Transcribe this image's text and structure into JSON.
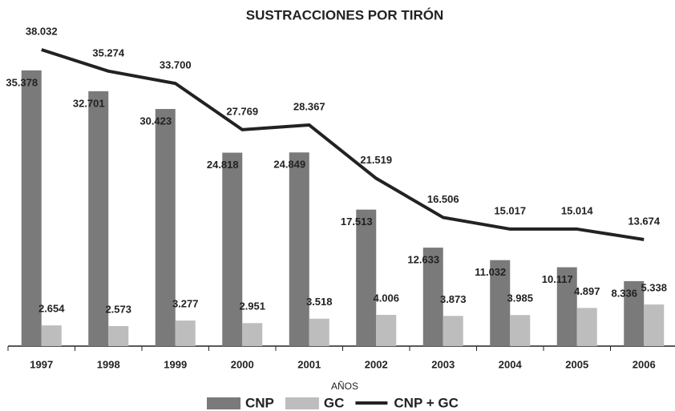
{
  "chart_data": {
    "type": "bar",
    "title": "SUSTRACCIONES POR TIRÓN",
    "x_label": "AÑOS",
    "categories": [
      "1997",
      "1998",
      "1999",
      "2000",
      "2001",
      "2002",
      "2003",
      "2004",
      "2005",
      "2006"
    ],
    "series": [
      {
        "name": "CNP",
        "color": "#7a7a7a",
        "values": [
          35378,
          32701,
          30423,
          24818,
          24849,
          17513,
          12633,
          11032,
          10117,
          8336
        ],
        "value_labels": [
          "35.378",
          "32.701",
          "30.423",
          "24.818",
          "24.849",
          "17.513",
          "12.633",
          "11.032",
          "10.117",
          "8.336"
        ]
      },
      {
        "name": "GC",
        "color": "#bdbdbd",
        "values": [
          2654,
          2573,
          3277,
          2951,
          3518,
          4006,
          3873,
          3985,
          4897,
          5338
        ],
        "value_labels": [
          "2.654",
          "2.573",
          "3.277",
          "2.951",
          "3.518",
          "4.006",
          "3.873",
          "3.985",
          "4.897",
          "5.338"
        ]
      },
      {
        "name": "CNP + GC",
        "type": "line",
        "color": "#222222",
        "values": [
          38032,
          35274,
          33700,
          27769,
          28367,
          21519,
          16506,
          15017,
          15014,
          13674
        ],
        "value_labels": [
          "38.032",
          "35.274",
          "33.700",
          "27.769",
          "28.367",
          "21.519",
          "16.506",
          "15.017",
          "15.014",
          "13.674"
        ]
      }
    ],
    "legend": "bottom"
  }
}
